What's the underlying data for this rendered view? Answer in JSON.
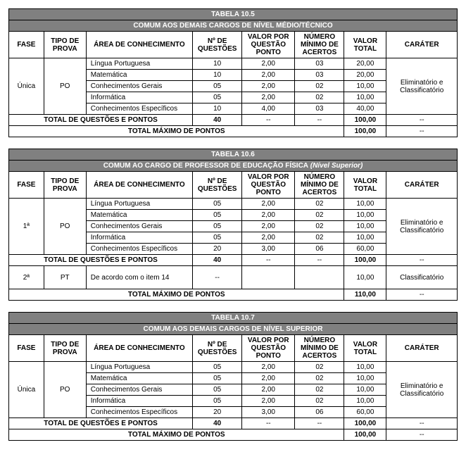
{
  "colors": {
    "header_bg": "#808080",
    "header_fg": "#ffffff",
    "border": "#000000",
    "text": "#000000"
  },
  "font": {
    "family": "Arial",
    "size_pt": 10
  },
  "columns": {
    "fase": "FASE",
    "tipo": "TIPO DE PROVA",
    "area": "ÁREA DE CONHECIMENTO",
    "nq": "Nº DE QUESTÕES",
    "vp": "VALOR POR QUESTÃO PONTO",
    "nm": "NÚMERO MÍNIMO DE ACERTOS",
    "vt": "VALOR TOTAL",
    "car": "CARÁTER"
  },
  "labels": {
    "total_qp": "TOTAL DE QUESTÕES E PONTOS",
    "total_max": "TOTAL MÁXIMO DE PONTOS",
    "dash": "--"
  },
  "tables": [
    {
      "id": "t105",
      "title_line1": "TABELA 10.5",
      "title_prefix": "COMUM AOS DEMAIS CARGOS DE ",
      "title_bold": "NÍVEL MÉDIO/TÉCNICO",
      "title_suffix": "",
      "phases": [
        {
          "fase": "Única",
          "tipo": "PO",
          "car": "Eliminatório e Classificatório",
          "rows": [
            {
              "area": "Língua Portuguesa",
              "nq": "10",
              "vp": "2,00",
              "nm": "03",
              "vt": "20,00"
            },
            {
              "area": "Matemática",
              "nq": "10",
              "vp": "2,00",
              "nm": "03",
              "vt": "20,00"
            },
            {
              "area": "Conhecimentos Gerais",
              "nq": "05",
              "vp": "2,00",
              "nm": "02",
              "vt": "10,00"
            },
            {
              "area": "Informática",
              "nq": "05",
              "vp": "2,00",
              "nm": "02",
              "vt": "10,00"
            },
            {
              "area": "Conhecimentos Específicos",
              "nq": "10",
              "vp": "4,00",
              "nm": "03",
              "vt": "40,00"
            }
          ]
        }
      ],
      "total_qp_nq": "40",
      "total_qp_vt": "100,00",
      "total_max_vt": "100,00"
    },
    {
      "id": "t106",
      "title_line1": "TABELA 10.6",
      "title_prefix": "COMUM AO CARGO DE ",
      "title_bold": "PROFESSOR DE EDUCAÇÃO FÍSICA",
      "title_suffix": " (Nível Superior)",
      "phases": [
        {
          "fase": "1ª",
          "tipo": "PO",
          "car": "Eliminatório e Classificatório",
          "rows": [
            {
              "area": "Língua Portuguesa",
              "nq": "05",
              "vp": "2,00",
              "nm": "02",
              "vt": "10,00"
            },
            {
              "area": "Matemática",
              "nq": "05",
              "vp": "2,00",
              "nm": "02",
              "vt": "10,00"
            },
            {
              "area": "Conhecimentos Gerais",
              "nq": "05",
              "vp": "2,00",
              "nm": "02",
              "vt": "10,00"
            },
            {
              "area": "Informática",
              "nq": "05",
              "vp": "2,00",
              "nm": "02",
              "vt": "10,00"
            },
            {
              "area": "Conhecimentos Específicos",
              "nq": "20",
              "vp": "3,00",
              "nm": "06",
              "vt": "60,00"
            }
          ]
        }
      ],
      "total_qp_nq": "40",
      "total_qp_vt": "100,00",
      "extra_phase": {
        "fase": "2ª",
        "tipo": "PT",
        "area": "De acordo com o item 14",
        "nq": "--",
        "vp": "",
        "nm": "",
        "vt": "10,00",
        "car": "Classificatório"
      },
      "total_max_vt": "110,00"
    },
    {
      "id": "t107",
      "title_line1": "TABELA 10.7",
      "title_prefix": "COMUM AOS DEMAIS CARGOS DE ",
      "title_bold": "NÍVEL SUPERIOR",
      "title_suffix": "",
      "phases": [
        {
          "fase": "Única",
          "tipo": "PO",
          "car": "Eliminatório e Classificatório",
          "rows": [
            {
              "area": "Língua Portuguesa",
              "nq": "05",
              "vp": "2,00",
              "nm": "02",
              "vt": "10,00"
            },
            {
              "area": "Matemática",
              "nq": "05",
              "vp": "2,00",
              "nm": "02",
              "vt": "10,00"
            },
            {
              "area": "Conhecimentos Gerais",
              "nq": "05",
              "vp": "2,00",
              "nm": "02",
              "vt": "10,00"
            },
            {
              "area": "Informática",
              "nq": "05",
              "vp": "2,00",
              "nm": "02",
              "vt": "10,00"
            },
            {
              "area": "Conhecimentos Específicos",
              "nq": "20",
              "vp": "3,00",
              "nm": "06",
              "vt": "60,00"
            }
          ]
        }
      ],
      "total_qp_nq": "40",
      "total_qp_vt": "100,00",
      "total_max_vt": "100,00"
    }
  ]
}
